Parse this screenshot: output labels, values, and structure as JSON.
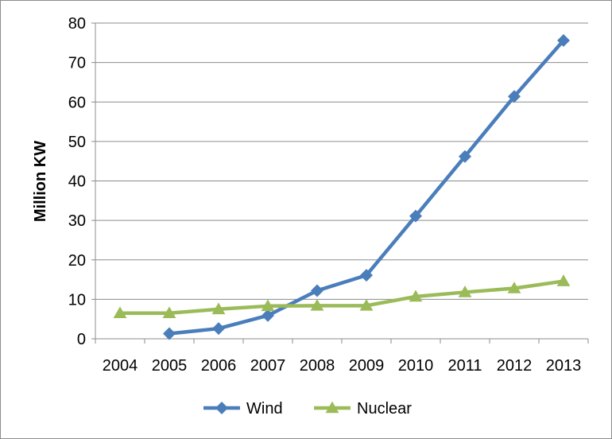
{
  "chart_data": {
    "type": "line",
    "categories": [
      "2004",
      "2005",
      "2006",
      "2007",
      "2008",
      "2009",
      "2010",
      "2011",
      "2012",
      "2013"
    ],
    "series": [
      {
        "name": "Wind",
        "color": "#4a7ebb",
        "marker": "diamond",
        "values": [
          null,
          1.3,
          2.6,
          5.9,
          12.2,
          16.1,
          31.1,
          46.2,
          61.4,
          75.6
        ]
      },
      {
        "name": "Nuclear",
        "color": "#9bbb59",
        "marker": "triangle",
        "values": [
          6.5,
          6.5,
          7.5,
          8.3,
          8.4,
          8.4,
          10.7,
          11.8,
          12.8,
          14.6
        ]
      }
    ],
    "ylabel": "Million KW",
    "ylim": [
      0,
      80
    ],
    "yticks": [
      0,
      10,
      20,
      30,
      40,
      50,
      60,
      70,
      80
    ],
    "grid": true,
    "legend": "bottom"
  }
}
